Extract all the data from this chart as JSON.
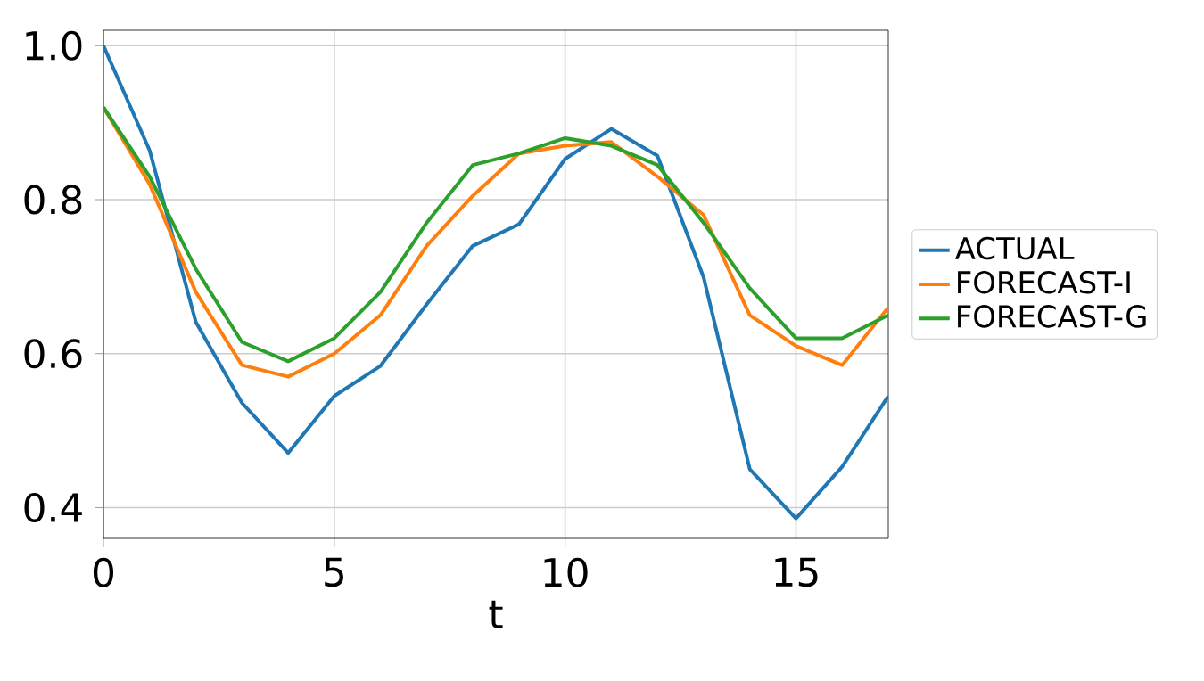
{
  "chart_data": {
    "type": "line",
    "xlabel": "t",
    "x": [
      0,
      1,
      2,
      3,
      4,
      5,
      6,
      7,
      8,
      9,
      10,
      11,
      12,
      13,
      14,
      15,
      16,
      17
    ],
    "series": [
      {
        "name": "ACTUAL",
        "color": "#1f77b4",
        "values": [
          1.0,
          0.864,
          0.641,
          0.536,
          0.471,
          0.545,
          0.584,
          0.664,
          0.74,
          0.768,
          0.853,
          0.892,
          0.857,
          0.699,
          0.45,
          0.386,
          0.453,
          0.545
        ]
      },
      {
        "name": "FORECAST-I",
        "color": "#ff7f0e",
        "values": [
          0.92,
          0.82,
          0.68,
          0.585,
          0.57,
          0.6,
          0.65,
          0.74,
          0.805,
          0.86,
          0.87,
          0.875,
          0.83,
          0.78,
          0.65,
          0.61,
          0.585,
          0.66
        ]
      },
      {
        "name": "FORECAST-G",
        "color": "#2ca02c",
        "values": [
          0.92,
          0.83,
          0.71,
          0.615,
          0.59,
          0.62,
          0.68,
          0.77,
          0.845,
          0.86,
          0.88,
          0.87,
          0.845,
          0.77,
          0.685,
          0.62,
          0.62,
          0.65
        ]
      }
    ],
    "xlim": [
      0,
      17
    ],
    "ylim": [
      0.36,
      1.02
    ],
    "xticks": [
      0,
      5,
      10,
      15
    ],
    "yticks": [
      {
        "value": 0.4,
        "label": "0.4"
      },
      {
        "value": 0.6,
        "label": "0.6"
      },
      {
        "value": 0.8,
        "label": "0.8"
      },
      {
        "value": 1.0,
        "label": "1.0"
      }
    ],
    "grid": true,
    "legend": "right",
    "marker": "none",
    "line_style": "solid"
  }
}
